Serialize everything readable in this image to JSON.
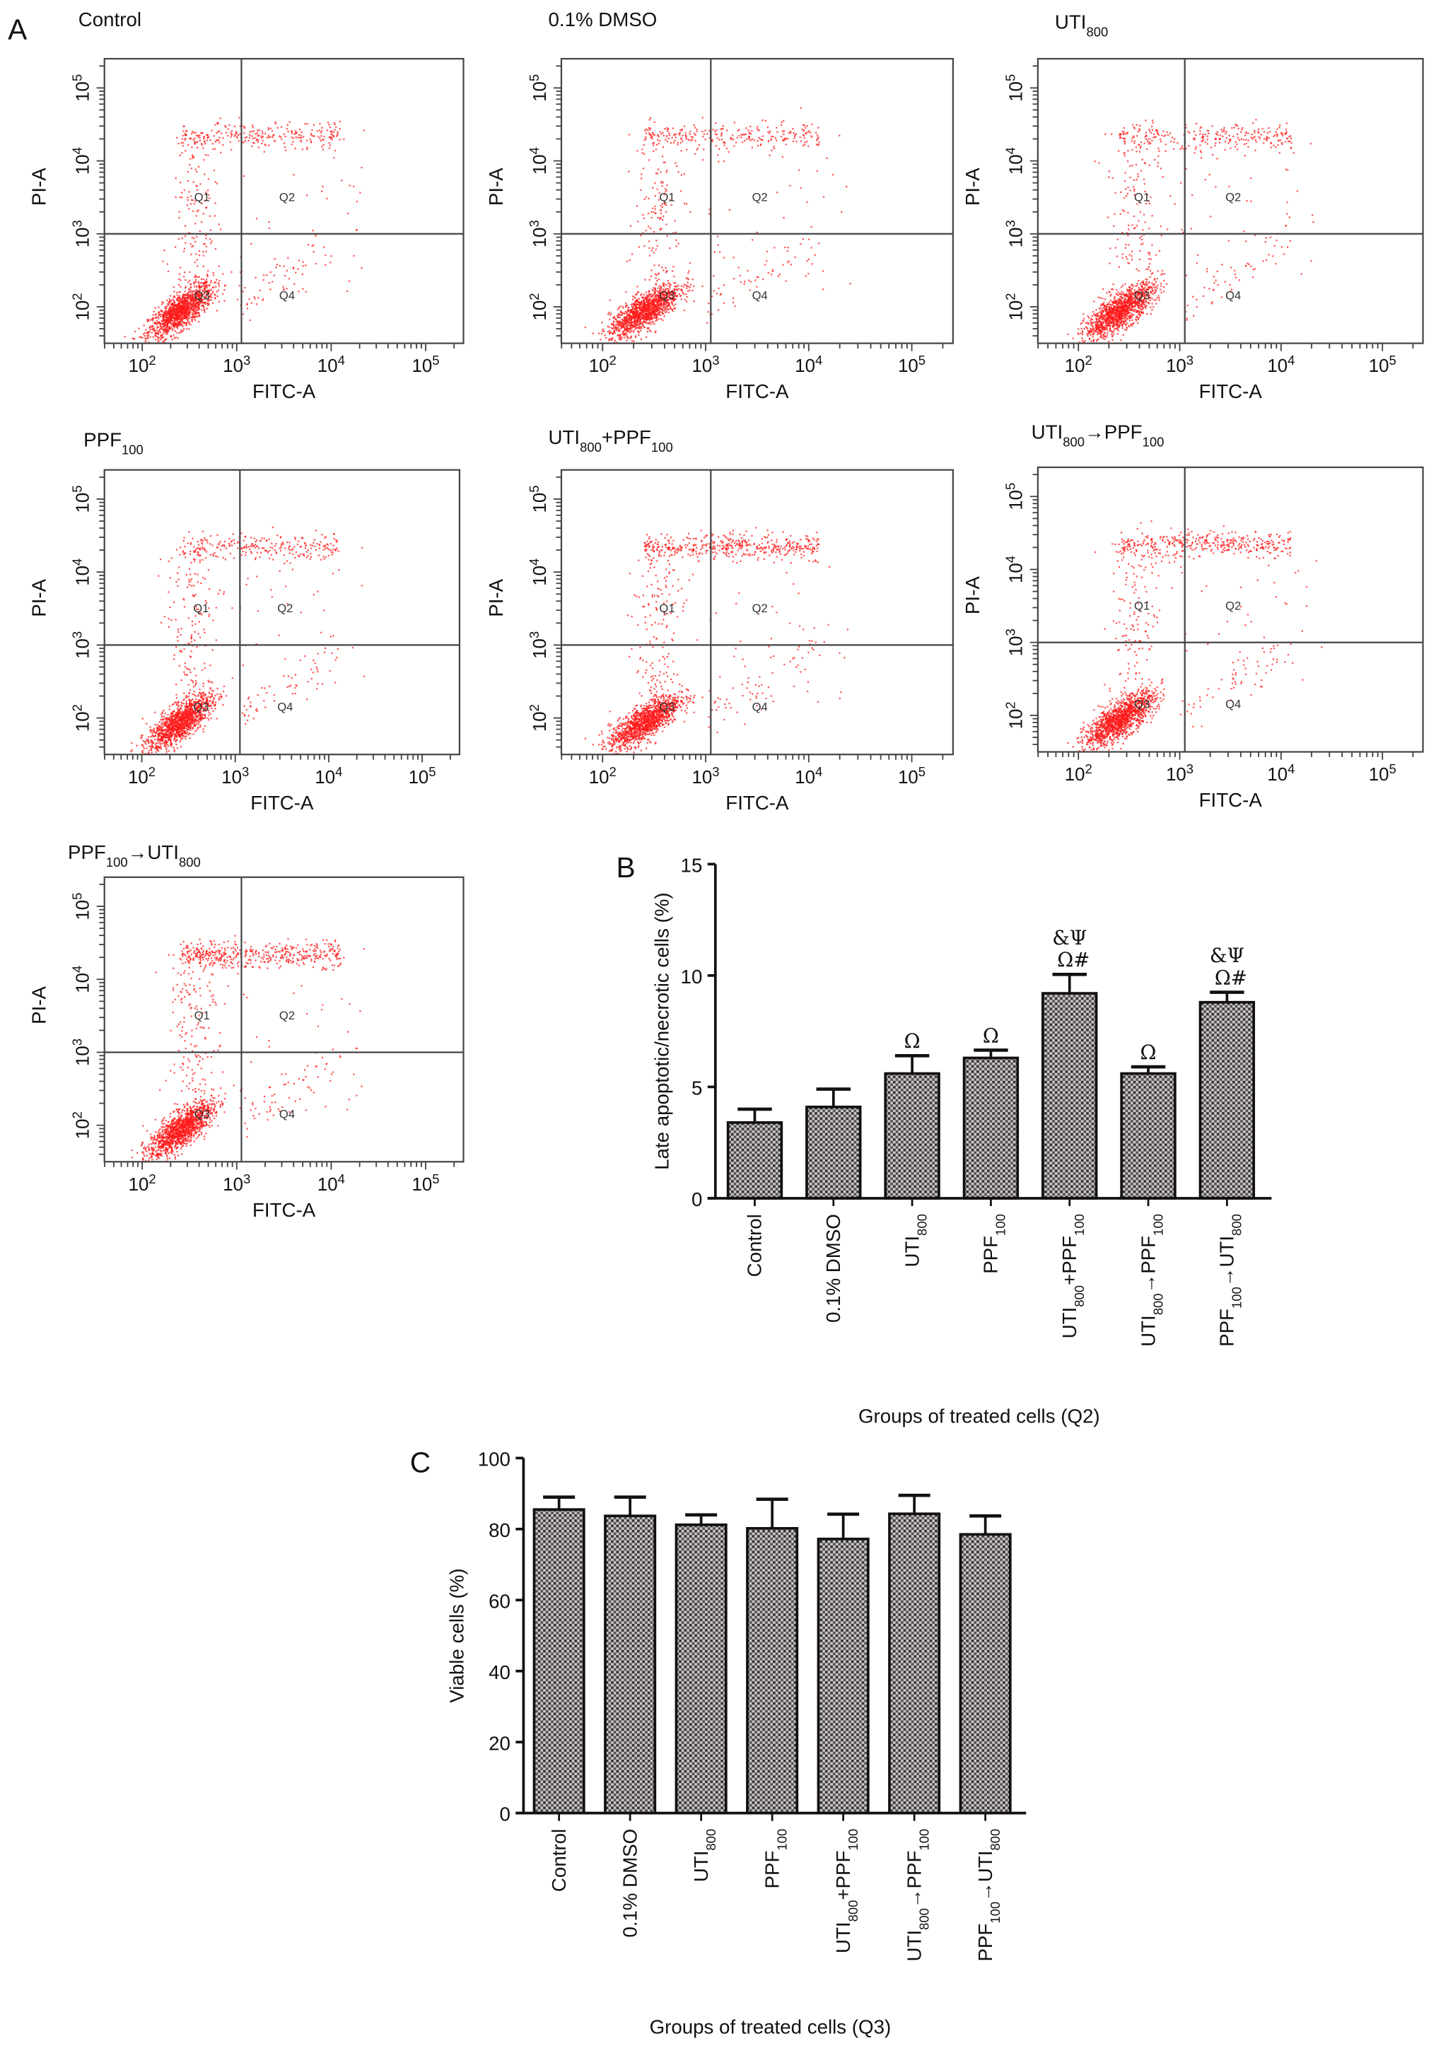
{
  "panel_labels": {
    "a": "A",
    "b": "B",
    "c": "C"
  },
  "flow_plots": {
    "x_label": "FITC-A",
    "y_label": "PI-A",
    "tick_base": "10",
    "tick_exponents": [
      "2",
      "3",
      "4",
      "5"
    ],
    "quadrants": [
      "Q1",
      "Q2",
      "Q3",
      "Q4"
    ],
    "dot_color": "#ff1a1a",
    "titles": [
      "Control",
      "0.1% DMSO",
      "UTI800",
      "PPF100",
      "UTI800+PPF100",
      "UTI800→PPF100",
      "PPF100→UTI800"
    ]
  },
  "chart_data": [
    {
      "type": "bar",
      "title": "",
      "xlabel": "Groups of treated cells (Q2)",
      "ylabel": "Late apoptotic/necrotic cells (%)",
      "ylim": [
        0,
        15
      ],
      "yticks": [
        "0",
        "5",
        "10",
        "15"
      ],
      "categories": [
        "Control",
        "0.1% DMSO",
        "UTI800",
        "PPF100",
        "UTI800+PPF100",
        "UTI800→PPF100",
        "PPF100→UTI800"
      ],
      "values": [
        3.4,
        4.1,
        5.6,
        6.3,
        9.2,
        5.6,
        8.8
      ],
      "error": [
        0.6,
        0.8,
        0.8,
        0.35,
        0.85,
        0.3,
        0.45
      ],
      "annotations": [
        [
          "",
          ""
        ],
        [
          "",
          ""
        ],
        [
          "Ω",
          ""
        ],
        [
          "Ω",
          ""
        ],
        [
          "Ω#",
          "&Ψ"
        ],
        [
          "Ω",
          ""
        ],
        [
          "Ω#",
          "&Ψ"
        ]
      ]
    },
    {
      "type": "bar",
      "title": "",
      "xlabel": "Groups of treated cells (Q3)",
      "ylabel": "Viable cells (%)",
      "ylim": [
        0,
        100
      ],
      "yticks": [
        "0",
        "20",
        "40",
        "60",
        "80",
        "100"
      ],
      "categories": [
        "Control",
        "0.1% DMSO",
        "UTI800",
        "PPF100",
        "UTI800+PPF100",
        "UTI800→PPF100",
        "PPF100→UTI800"
      ],
      "values": [
        85.5,
        83.7,
        81.2,
        80.2,
        77.2,
        84.3,
        78.5
      ],
      "error": [
        3.5,
        5.3,
        2.8,
        8.2,
        7.0,
        5.2,
        5.2
      ],
      "annotations": []
    }
  ]
}
